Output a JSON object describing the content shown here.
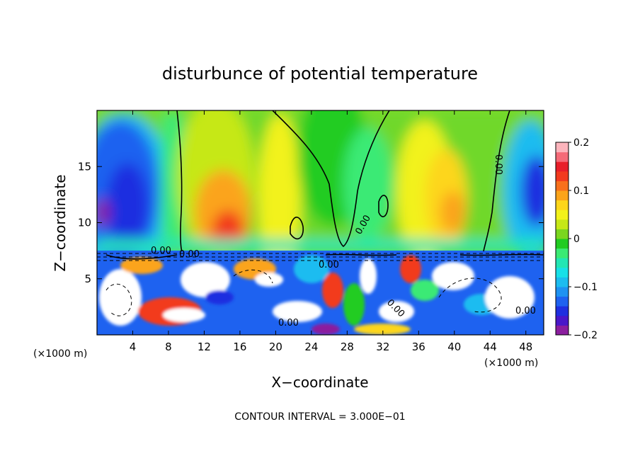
{
  "chart_data": {
    "type": "heatmap",
    "title": "disturbunce of potential temperature",
    "xlabel": "X−coordinate",
    "ylabel": "Z−coordinate",
    "x_unit_left": "(×1000 m)",
    "x_unit_right": "(×1000 m)",
    "xlim": [
      0,
      50
    ],
    "ylim": [
      0,
      20
    ],
    "xticks": [
      4,
      8,
      12,
      16,
      20,
      24,
      28,
      32,
      36,
      40,
      44,
      48
    ],
    "xtick_labels": [
      "4",
      "8",
      "12",
      "16",
      "20",
      "24",
      "28",
      "32",
      "36",
      "40",
      "44",
      "48"
    ],
    "yticks": [
      5,
      10,
      15
    ],
    "ytick_labels": [
      "5",
      "10",
      "15"
    ],
    "colorbar": {
      "range": [
        -0.2,
        0.2
      ],
      "ticks": [
        -0.2,
        -0.1,
        0,
        0.1,
        0.2
      ],
      "tick_labels": [
        "−0.2",
        "−0.1",
        "0",
        "0.1",
        "0.2"
      ],
      "colors": [
        "#8b1e9e",
        "#4a17c9",
        "#1f2fe0",
        "#1e62f0",
        "#1e92f2",
        "#1cbcf0",
        "#17e0e8",
        "#22e6b4",
        "#3bea74",
        "#21cc21",
        "#7ad61f",
        "#c6e817",
        "#f2f21a",
        "#fdd61a",
        "#fba41a",
        "#f8701c",
        "#f23a1e",
        "#e81e2a",
        "#f56a78",
        "#fcb4bc"
      ]
    },
    "contour_interval_text": "CONTOUR INTERVAL = 3.000E−01",
    "contour_labels": [
      "0.00",
      "0.00",
      "0.00",
      "0.00",
      "0.00",
      "0.00",
      "0.00",
      "0.00"
    ],
    "notes": "Upper region (z > 7.5) shows smooth field: cool lobes near x=0–8 and x=45–50, warm plumes near x=14–16 and x=34–40; lower region (z < 7.5) turbulent."
  }
}
